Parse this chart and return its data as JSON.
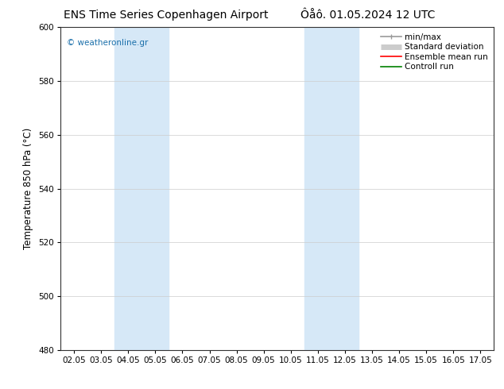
{
  "title_left": "ENS Time Series Copenhagen Airport",
  "title_right": "Ôåô. 01.05.2024 12 UTC",
  "ylabel": "Temperature 850 hPa (°C)",
  "ylim": [
    480,
    600
  ],
  "yticks": [
    480,
    500,
    520,
    540,
    560,
    580,
    600
  ],
  "x_labels": [
    "02.05",
    "03.05",
    "04.05",
    "05.05",
    "06.05",
    "07.05",
    "08.05",
    "09.05",
    "10.05",
    "11.05",
    "12.05",
    "13.05",
    "14.05",
    "15.05",
    "16.05",
    "17.05"
  ],
  "shaded_regions": [
    {
      "xstart": 2,
      "xend": 4,
      "color": "#d6e8f7"
    },
    {
      "xstart": 9,
      "xend": 11,
      "color": "#d6e8f7"
    }
  ],
  "watermark": "© weatheronline.gr",
  "legend_items": [
    {
      "label": "min/max",
      "color": "#999999",
      "lw": 1.2
    },
    {
      "label": "Standard deviation",
      "color": "#cccccc",
      "lw": 5
    },
    {
      "label": "Ensemble mean run",
      "color": "red",
      "lw": 1.2
    },
    {
      "label": "Controll run",
      "color": "green",
      "lw": 1.2
    }
  ],
  "background_color": "#ffffff",
  "grid_color": "#cccccc",
  "title_fontsize": 10,
  "tick_fontsize": 7.5,
  "ylabel_fontsize": 8.5,
  "watermark_fontsize": 7.5,
  "legend_fontsize": 7.5
}
